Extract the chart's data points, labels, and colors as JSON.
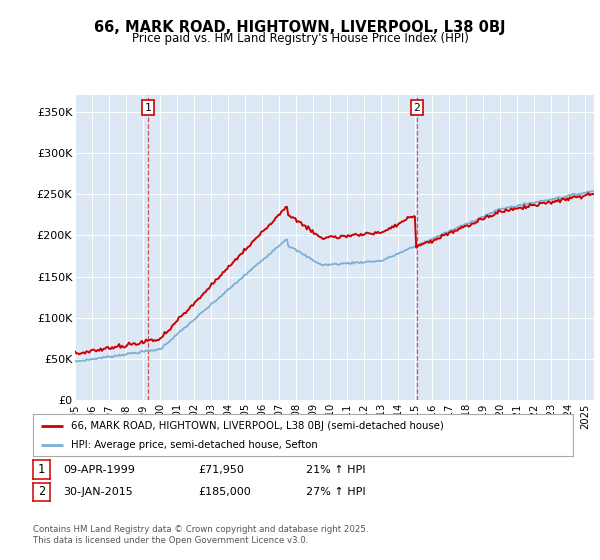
{
  "title": "66, MARK ROAD, HIGHTOWN, LIVERPOOL, L38 0BJ",
  "subtitle": "Price paid vs. HM Land Registry's House Price Index (HPI)",
  "ylabel_ticks": [
    "£0",
    "£50K",
    "£100K",
    "£150K",
    "£200K",
    "£250K",
    "£300K",
    "£350K"
  ],
  "yvalues": [
    0,
    50000,
    100000,
    150000,
    200000,
    250000,
    300000,
    350000
  ],
  "ylim": [
    0,
    370000
  ],
  "xlim_start": 1995.0,
  "xlim_end": 2025.5,
  "marker1_x": 1999.27,
  "marker1_y": 71950,
  "marker1_label": "1",
  "marker2_x": 2015.08,
  "marker2_y": 185000,
  "marker2_label": "2",
  "sale_color": "#cc0000",
  "hpi_color": "#7bafd4",
  "background_color": "#dde8f5",
  "fig_bg": "#ffffff",
  "legend_sale": "66, MARK ROAD, HIGHTOWN, LIVERPOOL, L38 0BJ (semi-detached house)",
  "legend_hpi": "HPI: Average price, semi-detached house, Sefton",
  "note1_label": "1",
  "note1_date": "09-APR-1999",
  "note1_price": "£71,950",
  "note1_hpi": "21% ↑ HPI",
  "note2_label": "2",
  "note2_date": "30-JAN-2015",
  "note2_price": "£185,000",
  "note2_hpi": "27% ↑ HPI",
  "footer": "Contains HM Land Registry data © Crown copyright and database right 2025.\nThis data is licensed under the Open Government Licence v3.0."
}
